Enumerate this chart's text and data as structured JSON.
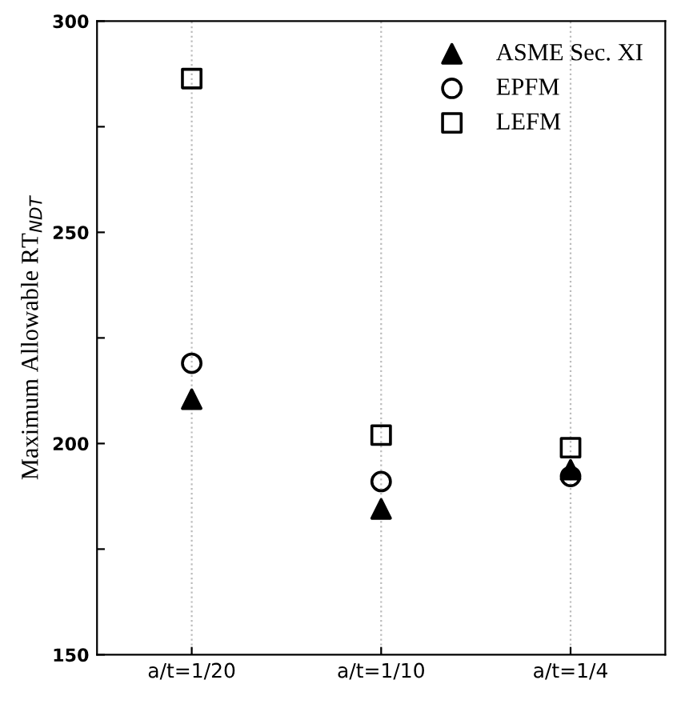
{
  "chart_data": {
    "type": "scatter",
    "ylabel": "Maximum Allowable RT$_{NDT}$",
    "categories": [
      "a/t=1/20",
      "a/t=1/10",
      "a/t=1/4"
    ],
    "series": [
      {
        "name": "ASME Sec. XI",
        "color": "#000000",
        "marker": "triangle",
        "values": [
          210.5,
          184.5,
          193.8
        ]
      },
      {
        "name": "EPFM",
        "color": "#000000",
        "marker": "circle",
        "values": [
          219,
          191,
          192.2
        ]
      },
      {
        "name": "LEFM",
        "color": "#000000",
        "marker": "square",
        "values": [
          286.4,
          202,
          199
        ]
      }
    ],
    "ylim": [
      150,
      300
    ],
    "yticks": [
      150,
      {
        "value": 175,
        "label": null
      },
      200,
      {
        "value": 225,
        "label": null
      },
      250,
      {
        "value": 275,
        "label": null
      },
      300
    ],
    "grid": "x",
    "legend": "top right"
  }
}
